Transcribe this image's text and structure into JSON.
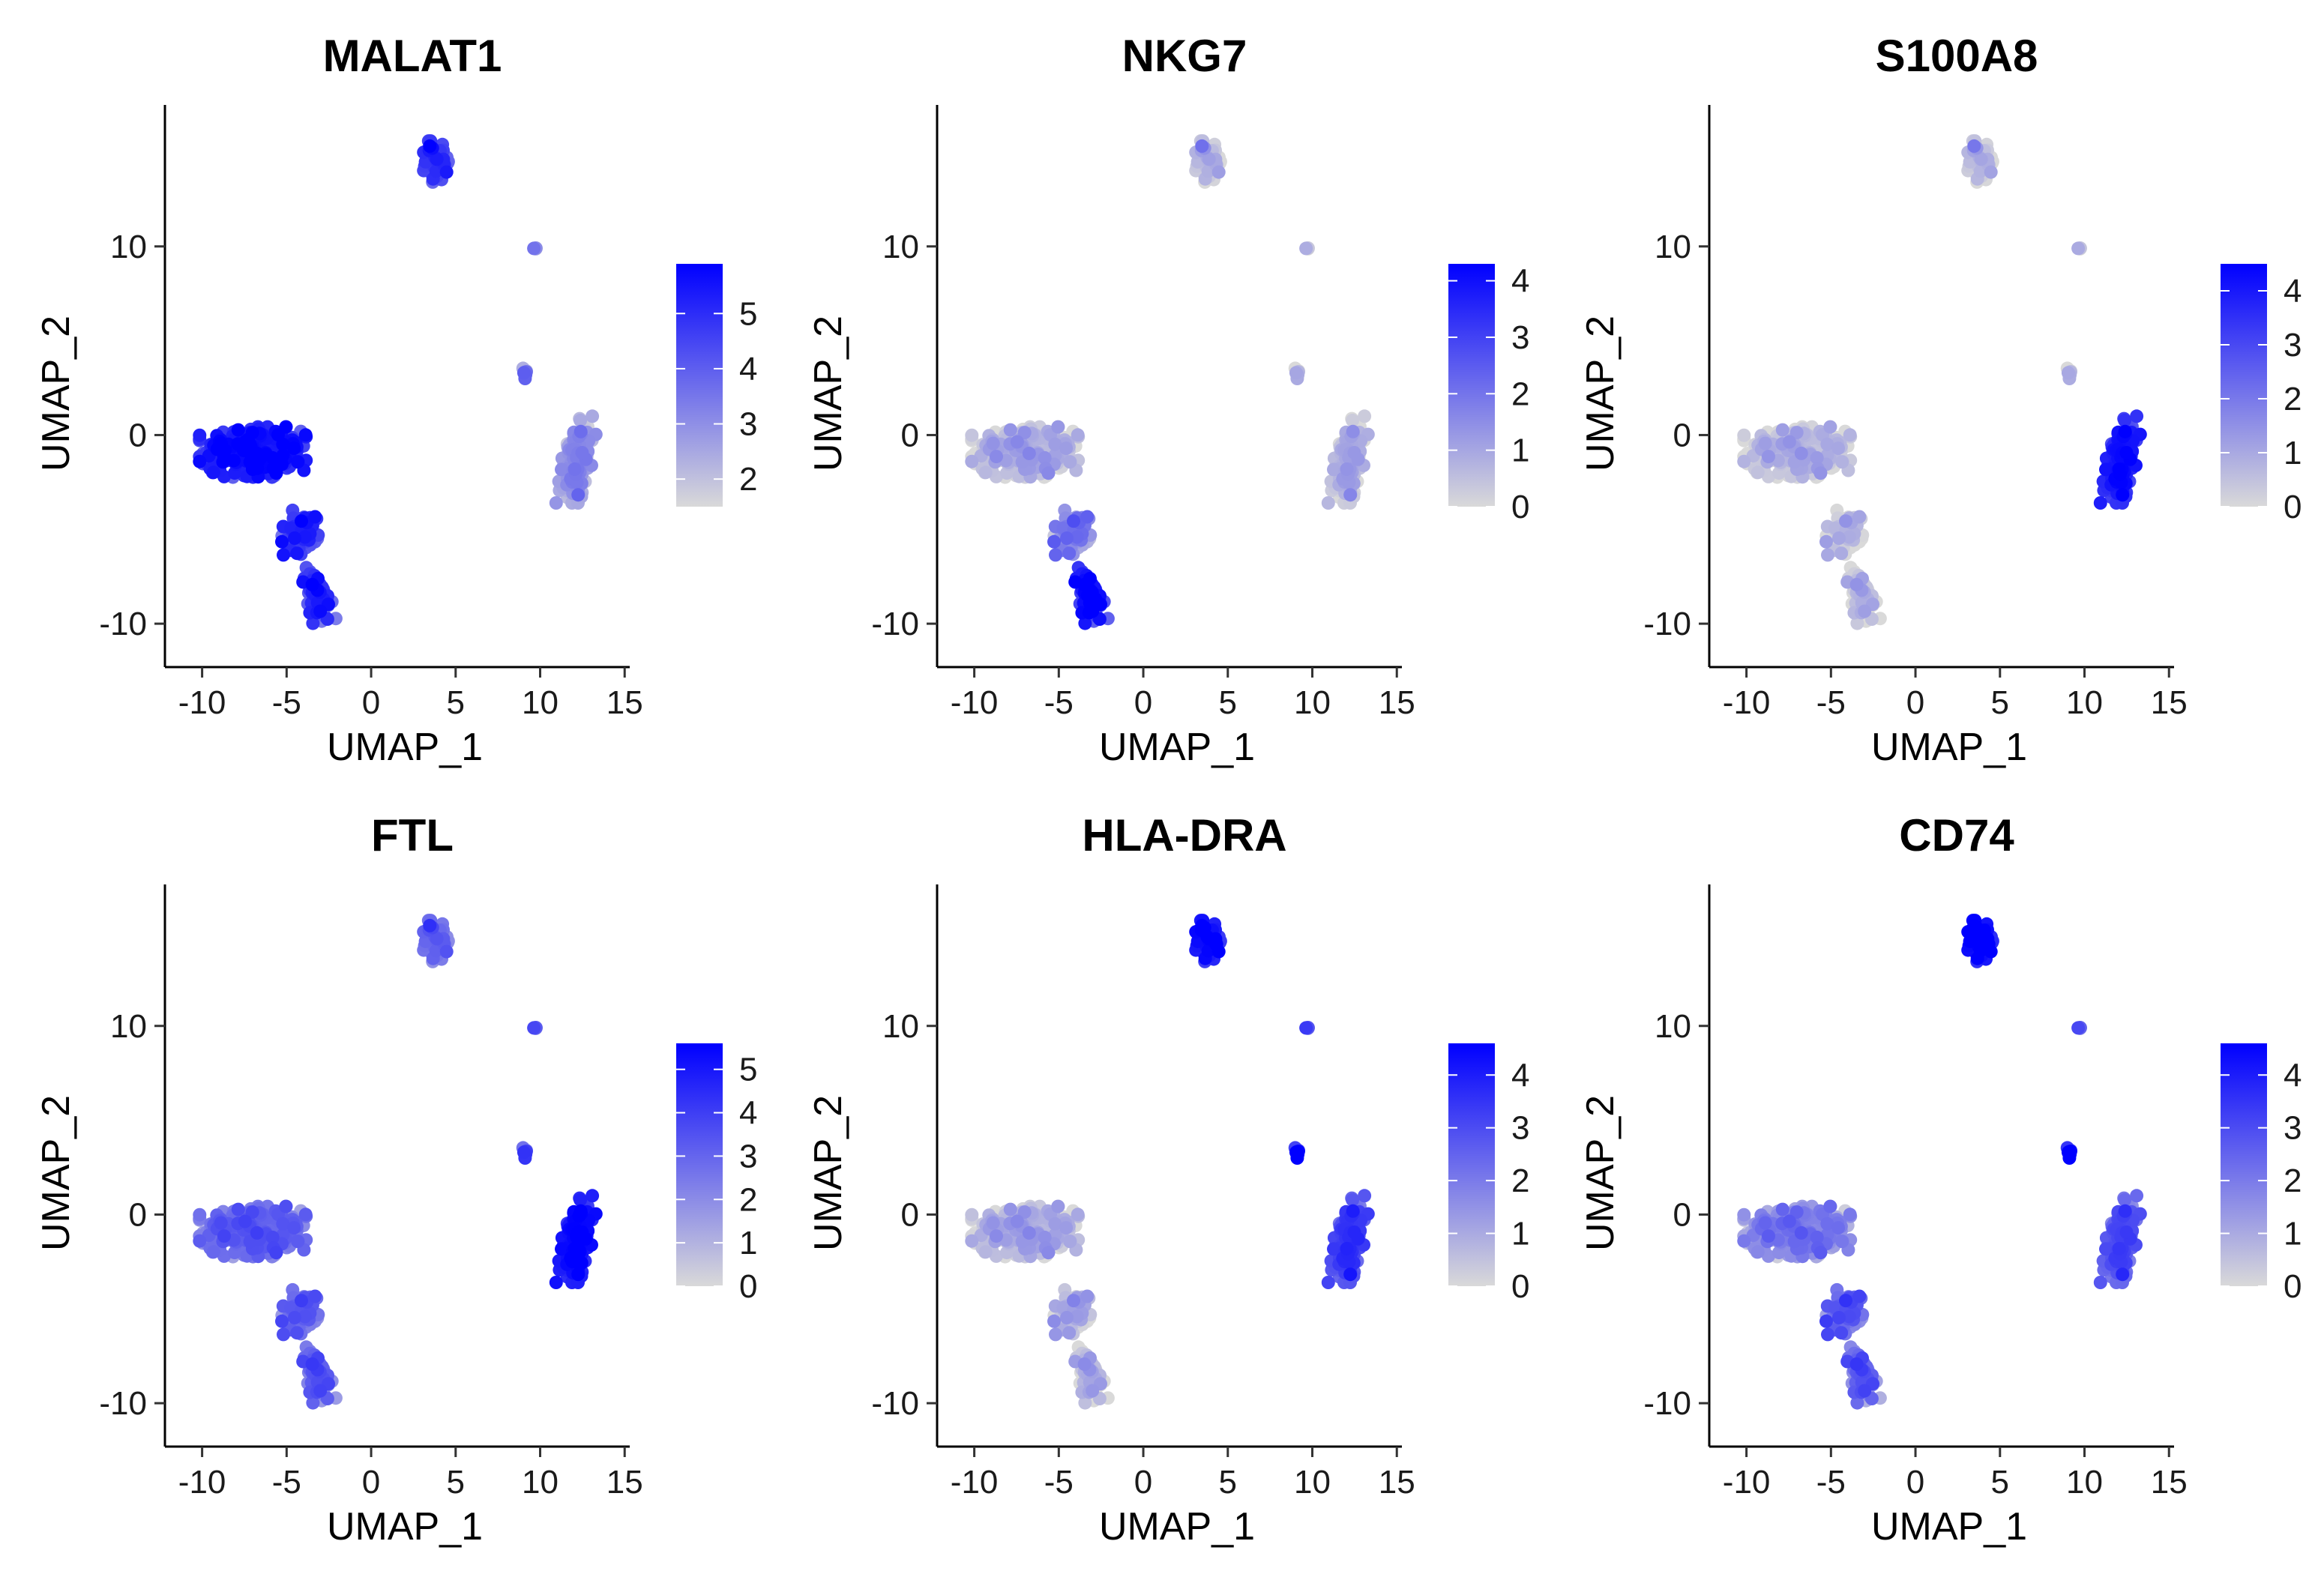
{
  "figure": {
    "type": "feature-plot-grid",
    "color_low": "#d9d9d9",
    "color_high": "#0000ff"
  },
  "chart_data": [
    {
      "type": "scatter",
      "title": "MALAT1",
      "xlabel": "UMAP_1",
      "ylabel": "UMAP_2",
      "xlim": [
        -12.2,
        15.3
      ],
      "ylim": [
        -12.3,
        17.5
      ],
      "xticks": [
        -10,
        -5,
        0,
        5,
        10,
        15
      ],
      "xtick_labels": [
        "-10",
        "-5",
        "0",
        "5",
        "10",
        "15"
      ],
      "yticks": [
        -10,
        0,
        10
      ],
      "ytick_labels": [
        "-10",
        "0",
        "10"
      ],
      "colorbar": {
        "min": 1.5,
        "max": 5.9,
        "ticks": [
          2,
          3,
          4,
          5
        ],
        "tick_labels": [
          "2",
          "3",
          "4",
          "5"
        ]
      },
      "cluster_expression": {
        "cd4_t": 5.1,
        "t_bridge": 4.6,
        "nk": 4.6,
        "b": 4.4,
        "platelet": 3.0,
        "dc": 3.2,
        "mono": 2.6
      }
    },
    {
      "type": "scatter",
      "title": "NKG7",
      "xlabel": "UMAP_1",
      "ylabel": "UMAP_2",
      "xlim": [
        -12.2,
        15.3
      ],
      "ylim": [
        -12.3,
        17.5
      ],
      "xticks": [
        -10,
        -5,
        0,
        5,
        10,
        15
      ],
      "xtick_labels": [
        "-10",
        "-5",
        "0",
        "5",
        "10",
        "15"
      ],
      "yticks": [
        -10,
        0,
        10
      ],
      "ytick_labels": [
        "-10",
        "0",
        "10"
      ],
      "colorbar": {
        "min": 0,
        "max": 4.3,
        "ticks": [
          0,
          1,
          2,
          3,
          4
        ],
        "tick_labels": [
          "0",
          "1",
          "2",
          "3",
          "4"
        ]
      },
      "cluster_expression": {
        "cd4_t": 0.3,
        "t_bridge": 1.4,
        "nk": 3.6,
        "b": 0.2,
        "platelet": 0.3,
        "dc": 0.2,
        "mono": 0.4
      }
    },
    {
      "type": "scatter",
      "title": "S100A8",
      "xlabel": "UMAP_1",
      "ylabel": "UMAP_2",
      "xlim": [
        -12.2,
        15.3
      ],
      "ylim": [
        -12.3,
        17.5
      ],
      "xticks": [
        -10,
        -5,
        0,
        5,
        10,
        15
      ],
      "xtick_labels": [
        "-10",
        "-5",
        "0",
        "5",
        "10",
        "15"
      ],
      "yticks": [
        -10,
        0,
        10
      ],
      "ytick_labels": [
        "-10",
        "0",
        "10"
      ],
      "colorbar": {
        "min": 0,
        "max": 4.5,
        "ticks": [
          0,
          1,
          2,
          3,
          4
        ],
        "tick_labels": [
          "0",
          "1",
          "2",
          "3",
          "4"
        ]
      },
      "cluster_expression": {
        "cd4_t": 0.15,
        "t_bridge": 0.1,
        "nk": 0.1,
        "b": 0.15,
        "platelet": 0.4,
        "dc": 0.2,
        "mono": 3.6
      }
    },
    {
      "type": "scatter",
      "title": "FTL",
      "xlabel": "UMAP_1",
      "ylabel": "UMAP_2",
      "xlim": [
        -12.2,
        15.3
      ],
      "ylim": [
        -12.3,
        17.5
      ],
      "xticks": [
        -10,
        -5,
        0,
        5,
        10,
        15
      ],
      "xtick_labels": [
        "-10",
        "-5",
        "0",
        "5",
        "10",
        "15"
      ],
      "yticks": [
        -10,
        0,
        10
      ],
      "ytick_labels": [
        "-10",
        "0",
        "10"
      ],
      "colorbar": {
        "min": 0,
        "max": 5.6,
        "ticks": [
          0,
          1,
          2,
          3,
          4,
          5
        ],
        "tick_labels": [
          "0",
          "1",
          "2",
          "3",
          "4",
          "5"
        ]
      },
      "cluster_expression": {
        "cd4_t": 2.6,
        "t_bridge": 2.7,
        "nk": 2.8,
        "b": 2.5,
        "platelet": 3.2,
        "dc": 3.5,
        "mono": 4.9
      }
    },
    {
      "type": "scatter",
      "title": "HLA-DRA",
      "xlabel": "UMAP_1",
      "ylabel": "UMAP_2",
      "xlim": [
        -12.2,
        15.3
      ],
      "ylim": [
        -12.3,
        17.5
      ],
      "xticks": [
        -10,
        -5,
        0,
        5,
        10,
        15
      ],
      "xtick_labels": [
        "-10",
        "-5",
        "0",
        "5",
        "10",
        "15"
      ],
      "yticks": [
        -10,
        0,
        10
      ],
      "ytick_labels": [
        "-10",
        "0",
        "10"
      ],
      "colorbar": {
        "min": 0,
        "max": 4.6,
        "ticks": [
          0,
          1,
          2,
          3,
          4
        ],
        "tick_labels": [
          "0",
          "1",
          "2",
          "3",
          "4"
        ]
      },
      "cluster_expression": {
        "cd4_t": 0.4,
        "t_bridge": 0.5,
        "nk": 0.3,
        "b": 3.9,
        "platelet": 2.8,
        "dc": 4.0,
        "mono": 2.9
      }
    },
    {
      "type": "scatter",
      "title": "CD74",
      "xlabel": "UMAP_1",
      "ylabel": "UMAP_2",
      "xlim": [
        -12.2,
        15.3
      ],
      "ylim": [
        -12.3,
        17.5
      ],
      "xticks": [
        -10,
        -5,
        0,
        5,
        10,
        15
      ],
      "xtick_labels": [
        "-10",
        "-5",
        "0",
        "5",
        "10",
        "15"
      ],
      "yticks": [
        -10,
        0,
        10
      ],
      "ytick_labels": [
        "-10",
        "0",
        "10"
      ],
      "colorbar": {
        "min": 0,
        "max": 4.6,
        "ticks": [
          0,
          1,
          2,
          3,
          4
        ],
        "tick_labels": [
          "0",
          "1",
          "2",
          "3",
          "4"
        ]
      },
      "cluster_expression": {
        "cd4_t": 1.4,
        "t_bridge": 2.2,
        "nk": 2.1,
        "b": 4.2,
        "platelet": 2.5,
        "dc": 4.3,
        "mono": 2.5
      }
    }
  ],
  "umap_clusters": [
    {
      "id": "cd4_t",
      "center": [
        -7.0,
        -0.9
      ],
      "spread": [
        2.6,
        1.1
      ],
      "n": 380
    },
    {
      "id": "t_bridge",
      "center": [
        -4.2,
        -5.2
      ],
      "spread": [
        0.9,
        1.0
      ],
      "n": 70
    },
    {
      "id": "nk",
      "center": [
        -3.1,
        -8.6
      ],
      "spread": [
        0.6,
        1.3
      ],
      "n": 80
    },
    {
      "id": "b",
      "center": [
        3.9,
        14.5
      ],
      "spread": [
        0.65,
        0.9
      ],
      "n": 80
    },
    {
      "id": "platelet",
      "center": [
        9.7,
        9.9
      ],
      "spread": [
        0.1,
        0.1
      ],
      "n": 4
    },
    {
      "id": "dc",
      "center": [
        9.1,
        3.3
      ],
      "spread": [
        0.25,
        0.25
      ],
      "n": 8
    },
    {
      "id": "mono",
      "center": [
        12.2,
        -1.3
      ],
      "spread": [
        0.75,
        1.9
      ],
      "n": 190
    }
  ]
}
